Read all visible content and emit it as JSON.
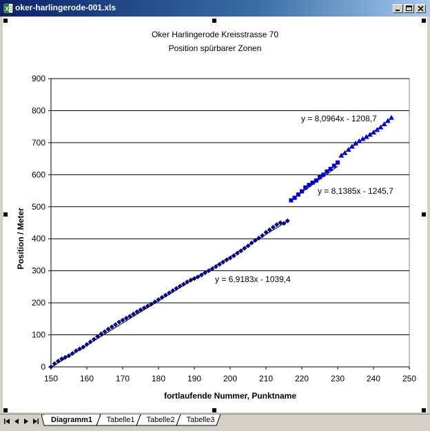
{
  "window": {
    "title": "oker-harlingerode-001.xls"
  },
  "chart": {
    "title_line1": "Oker Harlingerode Kreisstrasse 70",
    "title_line2": "Position spürbarer Zonen",
    "xlabel": "fortlaufende Nummer,  Punktname",
    "ylabel": "Position / Meter",
    "trend_labels": [
      "y = 6,9183x - 1039,4",
      "y = 8,1385x - 1245,7",
      "y = 8,0964x - 1208,7"
    ],
    "x_ticks": [
      "150",
      "160",
      "170",
      "180",
      "190",
      "200",
      "210",
      "220",
      "230",
      "240",
      "250"
    ],
    "y_ticks": [
      "0",
      "100",
      "200",
      "300",
      "400",
      "500",
      "600",
      "700",
      "800",
      "900"
    ]
  },
  "chart_data": {
    "type": "scatter",
    "title": "Oker Harlingerode Kreisstrasse 70 / Position spürbarer Zonen",
    "xlabel": "fortlaufende Nummer,  Punktname",
    "ylabel": "Position / Meter",
    "xlim": [
      150,
      250
    ],
    "ylim": [
      0,
      900
    ],
    "grid": "horizontal",
    "series": [
      {
        "marker": "diamond",
        "color": "#000080",
        "x": [
          150,
          151,
          152,
          153,
          154,
          155,
          156,
          157,
          158,
          159,
          160,
          161,
          162,
          163,
          164,
          165,
          166,
          167,
          168,
          169,
          170,
          171,
          172,
          173,
          174,
          175,
          176,
          177,
          178,
          179,
          180,
          181,
          182,
          183,
          184,
          185,
          186,
          187,
          188,
          189,
          190,
          191,
          192,
          193,
          194,
          195,
          196,
          197,
          198,
          199,
          200,
          201,
          202,
          203,
          204,
          205,
          206,
          207,
          208,
          209,
          210,
          211,
          212,
          213,
          214,
          215,
          216
        ],
        "y": [
          0,
          10,
          18,
          25,
          30,
          35,
          42,
          50,
          56,
          62,
          70,
          78,
          86,
          95,
          103,
          110,
          118,
          125,
          132,
          140,
          146,
          152,
          158,
          165,
          172,
          178,
          184,
          190,
          196,
          203,
          210,
          217,
          224,
          231,
          238,
          245,
          252,
          258,
          265,
          271,
          276,
          281,
          287,
          294,
          300,
          306,
          313,
          320,
          327,
          334,
          340,
          347,
          355,
          362,
          370,
          378,
          387,
          395,
          402,
          410,
          420,
          428,
          436,
          444,
          450,
          448,
          456
        ],
        "trendline": {
          "slope": 6.9183,
          "intercept": -1039.4
        }
      },
      {
        "marker": "square",
        "color": "#0000cc",
        "x": [
          217,
          218,
          219,
          220,
          221,
          222,
          223,
          224,
          225,
          226,
          227,
          228,
          229,
          230
        ],
        "y": [
          520,
          528,
          538,
          548,
          560,
          568,
          575,
          582,
          592,
          600,
          610,
          618,
          628,
          638
        ],
        "trendline": {
          "slope": 8.1385,
          "intercept": -1245.7
        }
      },
      {
        "marker": "triangle",
        "color": "#0000cc",
        "x": [
          231,
          232,
          233,
          234,
          235,
          236,
          237,
          238,
          239,
          240,
          241,
          242,
          243,
          244,
          245
        ],
        "y": [
          660,
          668,
          678,
          688,
          698,
          705,
          712,
          718,
          725,
          732,
          740,
          748,
          758,
          768,
          778
        ],
        "trendline": {
          "slope": 8.0964,
          "intercept": -1208.7
        }
      }
    ]
  },
  "tabs": {
    "items": [
      "Diagramm1",
      "Tabelle1",
      "Tabelle2",
      "Tabelle3"
    ],
    "active": "Diagramm1"
  }
}
